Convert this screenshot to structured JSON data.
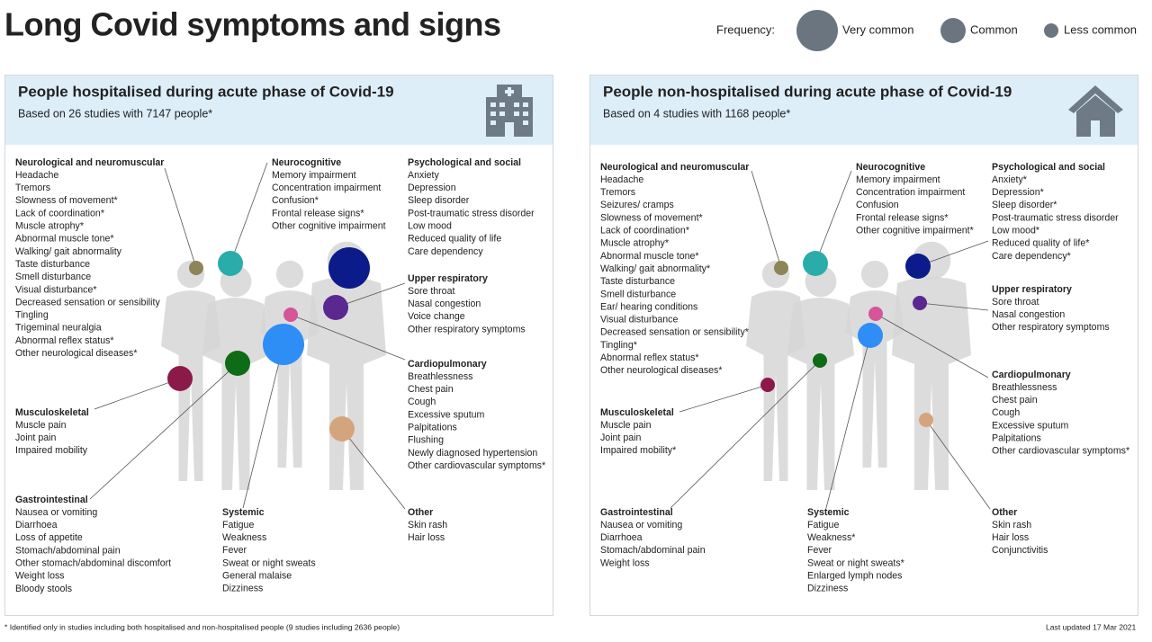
{
  "title": "Long Covid symptoms and signs",
  "legend": {
    "label": "Frequency:",
    "items": [
      "Very common",
      "Common",
      "Less common"
    ]
  },
  "panels": [
    {
      "title": "People hospitalised during acute phase of Covid-19",
      "subtitle": "Based on 26 studies with 7147 people*",
      "groups": [
        {
          "heading": "Neurological and neuromuscular",
          "items": [
            "Headache",
            "Tremors",
            "Slowness of movement*",
            "Lack of coordination*",
            "Muscle atrophy*",
            "Abnormal muscle tone*",
            "Walking/ gait abnormality",
            "Taste disturbance",
            "Smell disturbance",
            "Visual disturbance*",
            "Decreased sensation or sensibility",
            "Tingling",
            "Trigeminal neuralgia",
            "Abnormal reflex status*",
            "Other neurological diseases*"
          ]
        },
        {
          "heading": "Neurocognitive",
          "items": [
            "Memory impairment",
            "Concentration impairment",
            "Confusion*",
            "Frontal release signs*",
            "Other cognitive impairment"
          ]
        },
        {
          "heading": "Psychological and social",
          "items": [
            "Anxiety",
            "Depression",
            "Sleep disorder",
            "Post-traumatic stress disorder",
            "Low mood",
            "Reduced quality of life",
            "Care dependency"
          ]
        },
        {
          "heading": "Upper respiratory",
          "items": [
            "Sore throat",
            "Nasal congestion",
            "Voice change",
            "Other respiratory symptoms"
          ]
        },
        {
          "heading": "Cardiopulmonary",
          "items": [
            "Breathlessness",
            "Chest pain",
            "Cough",
            "Excessive sputum",
            "Palpitations",
            "Flushing",
            "Newly diagnosed hypertension",
            "Other cardiovascular symptoms*"
          ]
        },
        {
          "heading": "Musculoskeletal",
          "items": [
            "Muscle pain",
            "Joint pain",
            "Impaired mobility"
          ]
        },
        {
          "heading": "Gastrointestinal",
          "items": [
            "Nausea or vomiting",
            "Diarrhoea",
            "Loss of appetite",
            "Stomach/abdominal pain",
            "Other stomach/abdominal discomfort",
            "Weight loss",
            "Bloody stools"
          ]
        },
        {
          "heading": "Systemic",
          "items": [
            "Fatigue",
            "Weakness",
            "Fever",
            "Sweat or night sweats",
            "General malaise",
            "Dizziness"
          ]
        },
        {
          "heading": "Other",
          "items": [
            "Skin rash",
            "Hair loss"
          ]
        }
      ]
    },
    {
      "title": "People non-hospitalised during acute phase of Covid-19",
      "subtitle": "Based on 4 studies with 1168 people*",
      "groups": [
        {
          "heading": "Neurological and neuromuscular",
          "items": [
            "Headache",
            "Tremors",
            "Seizures/ cramps",
            "Slowness of movement*",
            "Lack of coordination*",
            "Muscle atrophy*",
            "Abnormal muscle tone*",
            "Walking/ gait abnormality*",
            "Taste disturbance",
            "Smell disturbance",
            "Ear/ hearing conditions",
            "Visual disturbance",
            "Decreased sensation or sensibility*",
            "Tingling*",
            "Abnormal reflex status*",
            "Other neurological diseases*"
          ]
        },
        {
          "heading": "Neurocognitive",
          "items": [
            "Memory impairment",
            "Concentration impairment",
            "Confusion",
            "Frontal release signs*",
            "Other cognitive impairment*"
          ]
        },
        {
          "heading": "Psychological and social",
          "items": [
            "Anxiety*",
            "Depression*",
            "Sleep disorder*",
            "Post-traumatic stress disorder",
            "Low mood*",
            "Reduced quality of life*",
            "Care dependency*"
          ]
        },
        {
          "heading": "Upper respiratory",
          "items": [
            "Sore throat",
            "Nasal congestion",
            "Other respiratory symptoms"
          ]
        },
        {
          "heading": "Cardiopulmonary",
          "items": [
            "Breathlessness",
            "Chest pain",
            "Cough",
            "Excessive sputum",
            "Palpitations",
            "Other cardiovascular symptoms*"
          ]
        },
        {
          "heading": "Musculoskeletal",
          "items": [
            "Muscle pain",
            "Joint pain",
            "Impaired mobility*"
          ]
        },
        {
          "heading": "Gastrointestinal",
          "items": [
            "Nausea or vomiting",
            "Diarrhoea",
            "Stomach/abdominal pain",
            "Weight loss"
          ]
        },
        {
          "heading": "Systemic",
          "items": [
            "Fatigue",
            "Weakness*",
            "Fever",
            "Sweat or night sweats*",
            "Enlarged lymph nodes",
            "Dizziness"
          ]
        },
        {
          "heading": "Other",
          "items": [
            "Skin rash",
            "Hair loss",
            "Conjunctivitis"
          ]
        }
      ]
    }
  ],
  "footnote": "* Identified only in studies including both hospitalised and non-hospitalised people (9 studies including 2636 people)",
  "updated": "Last updated 17 Mar 2021"
}
